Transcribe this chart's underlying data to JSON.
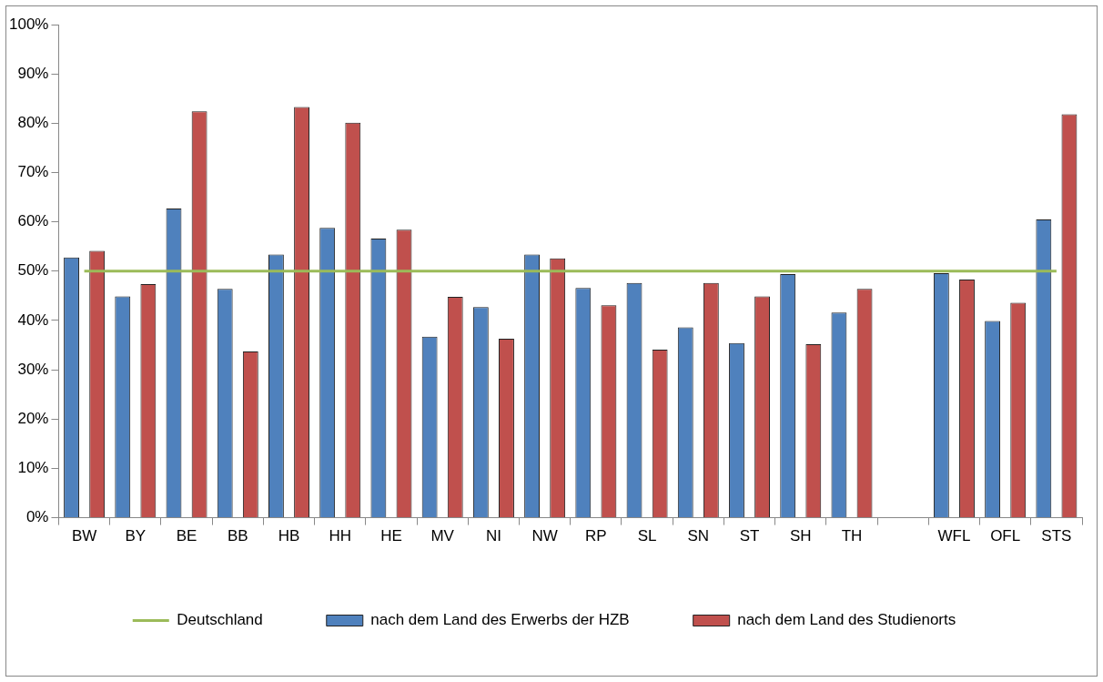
{
  "chart_data": {
    "type": "bar",
    "categories": [
      "BW",
      "BY",
      "BE",
      "BB",
      "HB",
      "HH",
      "HE",
      "MV",
      "NI",
      "NW",
      "RP",
      "SL",
      "SN",
      "ST",
      "SH",
      "TH",
      null,
      "WFL",
      "OFL",
      "STS"
    ],
    "series": [
      {
        "name": "nach dem Land des Erwerbs der HZB",
        "color": "#4f81bd",
        "values": [
          52.8,
          44.9,
          62.7,
          46.4,
          53.4,
          58.8,
          56.6,
          36.7,
          42.7,
          53.4,
          46.6,
          47.6,
          38.6,
          35.4,
          49.4,
          41.6,
          null,
          49.6,
          39.9,
          60.5
        ]
      },
      {
        "name": "nach dem Land des Studienorts",
        "color": "#c0504d",
        "values": [
          54.1,
          47.4,
          82.4,
          33.7,
          83.3,
          80.1,
          58.4,
          44.8,
          36.3,
          52.6,
          43.1,
          34.1,
          47.6,
          44.9,
          35.2,
          46.4,
          null,
          48.3,
          43.6,
          81.8
        ]
      },
      {
        "name": "Deutschland",
        "color": "#9bbb59",
        "type": "line",
        "values": [
          50,
          50,
          50,
          50,
          50,
          50,
          50,
          50,
          50,
          50,
          50,
          50,
          50,
          50,
          50,
          50,
          50,
          50,
          50,
          50
        ]
      }
    ],
    "ylim": [
      0,
      100
    ],
    "yticks": [
      {
        "value": 0,
        "label": "0%"
      },
      {
        "value": 10,
        "label": "10%"
      },
      {
        "value": 20,
        "label": "20%"
      },
      {
        "value": 30,
        "label": "30%"
      },
      {
        "value": 40,
        "label": "40%"
      },
      {
        "value": 50,
        "label": "50%"
      },
      {
        "value": 60,
        "label": "60%"
      },
      {
        "value": 70,
        "label": "70%"
      },
      {
        "value": 80,
        "label": "80%"
      },
      {
        "value": 90,
        "label": "90%"
      },
      {
        "value": 100,
        "label": "100%"
      }
    ],
    "grid": false,
    "legend": "bottom",
    "marker": "none"
  }
}
